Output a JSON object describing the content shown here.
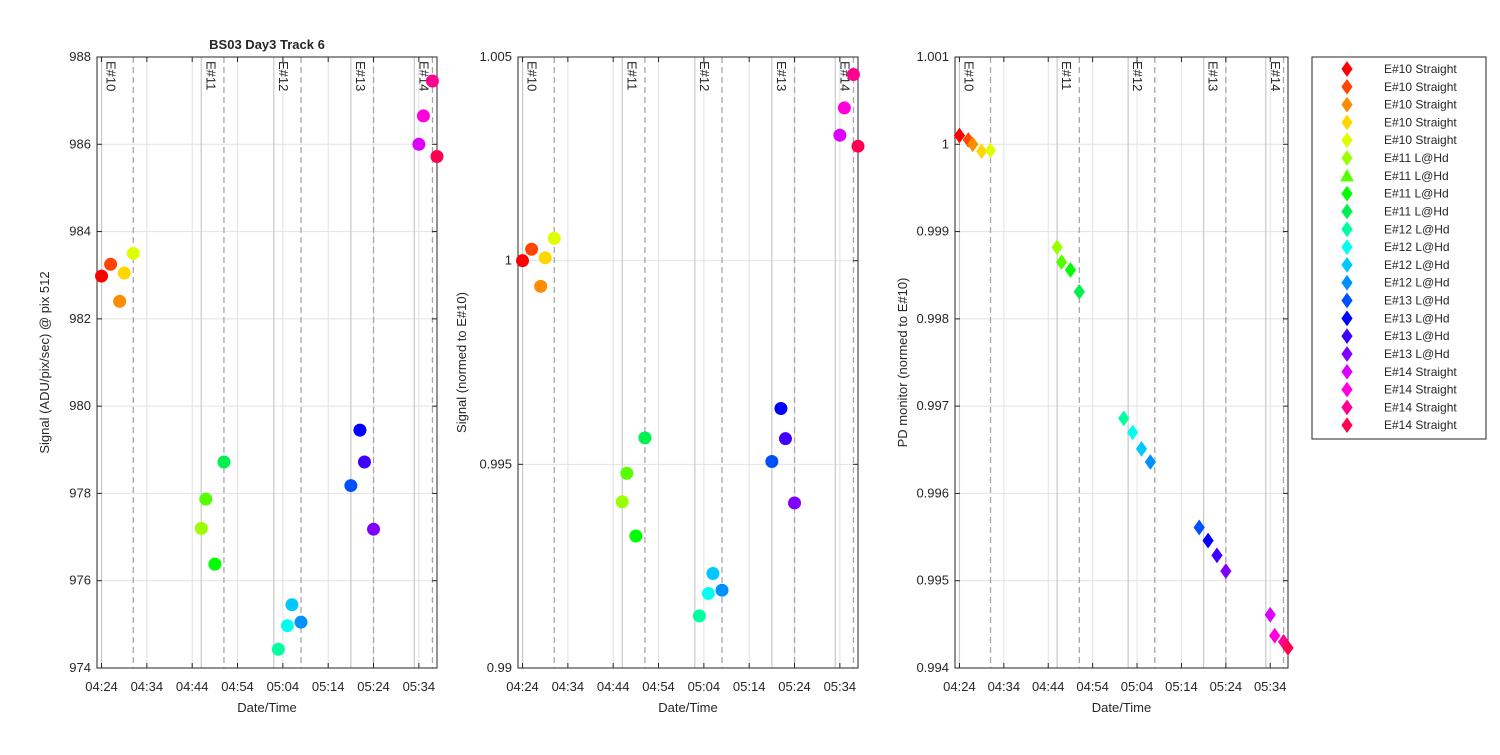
{
  "chart_data": {
    "type": "scatter",
    "x_time_ticks": [
      "04:24",
      "04:34",
      "04:44",
      "04:54",
      "05:04",
      "05:14",
      "05:24",
      "05:34"
    ],
    "exposure_labels": [
      "E#10",
      "E#11",
      "E#12",
      "E#13",
      "E#14"
    ],
    "exposure_solid_lines": [
      "04:24",
      "04:46",
      "05:02",
      "05:19",
      "05:33"
    ],
    "exposure_dashed_lines": [
      "04:31",
      "04:51",
      "05:08",
      "05:24",
      "05:37"
    ],
    "x_range": [
      "04:23",
      "05:38"
    ],
    "grid": true,
    "panels": [
      {
        "title": "BS03 Day3 Track 6",
        "xlabel": "Date/Time",
        "ylabel": "Signal (ADU/pix/sec) @ pix 512",
        "ylim": [
          974,
          988
        ],
        "yticks": [
          "974",
          "976",
          "978",
          "980",
          "982",
          "984",
          "986",
          "988"
        ],
        "marker": "circle",
        "points": [
          {
            "x": "04:24",
            "y": 982.98,
            "color": "#ff0000"
          },
          {
            "x": "04:26",
            "y": 983.25,
            "color": "#ff4500"
          },
          {
            "x": "04:28",
            "y": 982.4,
            "color": "#ff8c00"
          },
          {
            "x": "04:29",
            "y": 983.05,
            "color": "#ffd700"
          },
          {
            "x": "04:31",
            "y": 983.5,
            "color": "#dfff00"
          },
          {
            "x": "04:46",
            "y": 977.2,
            "color": "#9aff00"
          },
          {
            "x": "04:47",
            "y": 977.87,
            "color": "#55ff00"
          },
          {
            "x": "04:49",
            "y": 976.38,
            "color": "#00ff00"
          },
          {
            "x": "04:51",
            "y": 978.72,
            "color": "#00f050"
          },
          {
            "x": "05:03",
            "y": 974.43,
            "color": "#00ffa0"
          },
          {
            "x": "05:05",
            "y": 974.97,
            "color": "#00fff0"
          },
          {
            "x": "05:06",
            "y": 975.45,
            "color": "#00c8ff"
          },
          {
            "x": "05:08",
            "y": 975.05,
            "color": "#0090ff"
          },
          {
            "x": "05:19",
            "y": 978.18,
            "color": "#0050ff"
          },
          {
            "x": "05:21",
            "y": 979.45,
            "color": "#0000ff"
          },
          {
            "x": "05:22",
            "y": 978.72,
            "color": "#4000ff"
          },
          {
            "x": "05:24",
            "y": 977.18,
            "color": "#8000ff"
          },
          {
            "x": "05:34",
            "y": 986.0,
            "color": "#dd00ff"
          },
          {
            "x": "05:35",
            "y": 986.65,
            "color": "#ff00dd"
          },
          {
            "x": "05:37",
            "y": 987.45,
            "color": "#ff0090"
          },
          {
            "x": "05:38",
            "y": 985.72,
            "color": "#ff0050"
          }
        ]
      },
      {
        "title": "",
        "xlabel": "Date/Time",
        "ylabel": "Signal (normed to E#10)",
        "ylim": [
          0.99,
          1.005
        ],
        "yticks": [
          "0.99",
          "0.995",
          "1",
          "1.005"
        ],
        "marker": "circle",
        "points": [
          {
            "x": "04:24",
            "y": 1.0,
            "color": "#ff0000"
          },
          {
            "x": "04:26",
            "y": 1.00028,
            "color": "#ff4500"
          },
          {
            "x": "04:28",
            "y": 0.99937,
            "color": "#ff8c00"
          },
          {
            "x": "04:29",
            "y": 1.00007,
            "color": "#ffd700"
          },
          {
            "x": "04:31",
            "y": 1.00055,
            "color": "#dfff00"
          },
          {
            "x": "04:46",
            "y": 0.99408,
            "color": "#9aff00"
          },
          {
            "x": "04:47",
            "y": 0.99478,
            "color": "#55ff00"
          },
          {
            "x": "04:49",
            "y": 0.99324,
            "color": "#00ff00"
          },
          {
            "x": "04:51",
            "y": 0.99565,
            "color": "#00f050"
          },
          {
            "x": "05:03",
            "y": 0.99128,
            "color": "#00ffa0"
          },
          {
            "x": "05:05",
            "y": 0.99183,
            "color": "#00fff0"
          },
          {
            "x": "05:06",
            "y": 0.99232,
            "color": "#00c8ff"
          },
          {
            "x": "05:08",
            "y": 0.99191,
            "color": "#0090ff"
          },
          {
            "x": "05:19",
            "y": 0.99507,
            "color": "#0050ff"
          },
          {
            "x": "05:21",
            "y": 0.99637,
            "color": "#0000ff"
          },
          {
            "x": "05:22",
            "y": 0.99563,
            "color": "#4000ff"
          },
          {
            "x": "05:24",
            "y": 0.99405,
            "color": "#8000ff"
          },
          {
            "x": "05:34",
            "y": 1.00308,
            "color": "#dd00ff"
          },
          {
            "x": "05:35",
            "y": 1.00375,
            "color": "#ff00dd"
          },
          {
            "x": "05:37",
            "y": 1.00457,
            "color": "#ff0090"
          },
          {
            "x": "05:38",
            "y": 1.00281,
            "color": "#ff0050"
          }
        ]
      },
      {
        "title": "",
        "xlabel": "Date/Time",
        "ylabel": "PD monitor (normed to E#10)",
        "ylim": [
          0.994,
          1.001
        ],
        "yticks": [
          "0.994",
          "0.995",
          "0.996",
          "0.997",
          "0.998",
          "0.999",
          "1",
          "1.001"
        ],
        "marker": "diamond",
        "points": [
          {
            "x": "04:24",
            "y": 1.0001,
            "color": "#ff0000"
          },
          {
            "x": "04:26",
            "y": 1.00005,
            "color": "#ff4500"
          },
          {
            "x": "04:27",
            "y": 1.0,
            "color": "#ff8c00"
          },
          {
            "x": "04:29",
            "y": 0.99992,
            "color": "#ffd700"
          },
          {
            "x": "04:31",
            "y": 0.99993,
            "color": "#dfff00"
          },
          {
            "x": "04:46",
            "y": 0.99882,
            "color": "#9aff00"
          },
          {
            "x": "04:47",
            "y": 0.99865,
            "color": "#55ff00"
          },
          {
            "x": "04:49",
            "y": 0.99856,
            "color": "#00ff00"
          },
          {
            "x": "04:51",
            "y": 0.99831,
            "color": "#00f050"
          },
          {
            "x": "05:01",
            "y": 0.99686,
            "color": "#00ffa0"
          },
          {
            "x": "05:03",
            "y": 0.9967,
            "color": "#00fff0"
          },
          {
            "x": "05:05",
            "y": 0.99651,
            "color": "#00c8ff"
          },
          {
            "x": "05:07",
            "y": 0.99636,
            "color": "#0090ff"
          },
          {
            "x": "05:18",
            "y": 0.99561,
            "color": "#0050ff"
          },
          {
            "x": "05:20",
            "y": 0.99546,
            "color": "#0000ff"
          },
          {
            "x": "05:22",
            "y": 0.99529,
            "color": "#4000ff"
          },
          {
            "x": "05:24",
            "y": 0.99511,
            "color": "#8000ff"
          },
          {
            "x": "05:34",
            "y": 0.99461,
            "color": "#dd00ff"
          },
          {
            "x": "05:35",
            "y": 0.99437,
            "color": "#ff00dd"
          },
          {
            "x": "05:37",
            "y": 0.9943,
            "color": "#ff0090"
          },
          {
            "x": "05:38",
            "y": 0.99423,
            "color": "#ff0050"
          }
        ]
      }
    ],
    "legend": {
      "placement": "outside-right",
      "entries": [
        {
          "label": "E#10 Straight",
          "color": "#ff0000",
          "marker": "diamond"
        },
        {
          "label": "E#10 Straight",
          "color": "#ff4500",
          "marker": "diamond"
        },
        {
          "label": "E#10 Straight",
          "color": "#ff8c00",
          "marker": "diamond"
        },
        {
          "label": "E#10 Straight",
          "color": "#ffd700",
          "marker": "diamond"
        },
        {
          "label": "E#10 Straight",
          "color": "#dfff00",
          "marker": "diamond"
        },
        {
          "label": "E#11 L@Hd",
          "color": "#9aff00",
          "marker": "diamond"
        },
        {
          "label": "E#11 L@Hd",
          "color": "#55ff00",
          "marker": "triangle"
        },
        {
          "label": "E#11 L@Hd",
          "color": "#00ff00",
          "marker": "diamond"
        },
        {
          "label": "E#11 L@Hd",
          "color": "#00f050",
          "marker": "diamond"
        },
        {
          "label": "E#12 L@Hd",
          "color": "#00ffa0",
          "marker": "diamond"
        },
        {
          "label": "E#12 L@Hd",
          "color": "#00fff0",
          "marker": "diamond"
        },
        {
          "label": "E#12 L@Hd",
          "color": "#00c8ff",
          "marker": "diamond"
        },
        {
          "label": "E#12 L@Hd",
          "color": "#0090ff",
          "marker": "diamond"
        },
        {
          "label": "E#13 L@Hd",
          "color": "#0050ff",
          "marker": "diamond"
        },
        {
          "label": "E#13 L@Hd",
          "color": "#0000ff",
          "marker": "diamond"
        },
        {
          "label": "E#13 L@Hd",
          "color": "#4000ff",
          "marker": "diamond"
        },
        {
          "label": "E#13 L@Hd",
          "color": "#8000ff",
          "marker": "diamond"
        },
        {
          "label": "E#14 Straight",
          "color": "#dd00ff",
          "marker": "diamond"
        },
        {
          "label": "E#14 Straight",
          "color": "#ff00dd",
          "marker": "diamond"
        },
        {
          "label": "E#14 Straight",
          "color": "#ff0090",
          "marker": "diamond"
        },
        {
          "label": "E#14 Straight",
          "color": "#ff0050",
          "marker": "diamond"
        }
      ]
    }
  }
}
